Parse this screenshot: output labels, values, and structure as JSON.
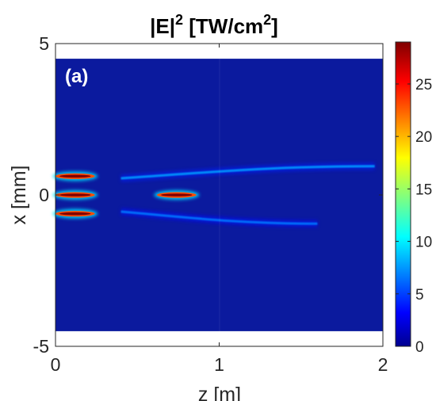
{
  "chart_data": {
    "type": "heatmap",
    "title": "|E|",
    "title_sup": "2",
    "title_units": " [TW/cm",
    "title_units_sup": "2",
    "title_close": "]",
    "panel_label": "(a)",
    "xlabel": "z [m]",
    "ylabel": "x [mm]",
    "xlim": [
      0,
      2
    ],
    "ylim": [
      -5,
      5
    ],
    "data_extent_x": [
      -4.5,
      4.5
    ],
    "x_ticks": [
      "0",
      "1",
      "2"
    ],
    "y_ticks": [
      "5",
      "0",
      "-5"
    ],
    "y_tick_values": [
      5,
      0,
      -5
    ],
    "x_tick_values": [
      0,
      1,
      2
    ],
    "colormap": "jet",
    "color_range": [
      0,
      29
    ],
    "colorbar_ticks": [
      "0",
      "5",
      "10",
      "15",
      "20",
      "25"
    ],
    "colorbar_tick_values": [
      0,
      5,
      10,
      15,
      20,
      25
    ],
    "background_color": "#0b1a9e",
    "features": [
      {
        "kind": "hotspot",
        "z_center": 0.12,
        "x": 0.62,
        "z_halfwidth": 0.12,
        "peak": 29
      },
      {
        "kind": "hotspot",
        "z_center": 0.12,
        "x": 0.0,
        "z_halfwidth": 0.12,
        "peak": 29
      },
      {
        "kind": "hotspot",
        "z_center": 0.12,
        "x": -0.62,
        "z_halfwidth": 0.12,
        "peak": 29
      },
      {
        "kind": "hotspot",
        "z_center": 0.74,
        "x": 0.0,
        "z_halfwidth": 0.12,
        "peak": 29
      },
      {
        "kind": "filament",
        "z_start": 0.4,
        "z_end": 1.95,
        "x_start": 0.55,
        "x_end": 0.95,
        "level": 8
      },
      {
        "kind": "filament",
        "z_start": 0.4,
        "z_end": 1.6,
        "x_start": -0.55,
        "x_end": -0.95,
        "level": 7
      }
    ]
  }
}
